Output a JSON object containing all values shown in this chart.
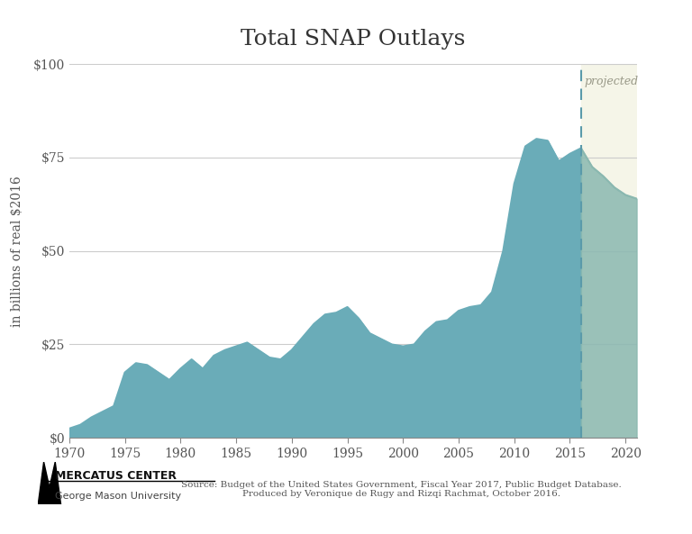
{
  "title": "Total SNAP Outlays",
  "ylabel": "in billions of real $2016",
  "xlabel": "",
  "source_text": "Source: Budget of the United States Government, Fiscal Year 2017, Public Budget Database.\nProduced by Veronique de Rugy and Rizqi Rachmat, October 2016.",
  "projection_label": "projected",
  "projection_start_year": 2016,
  "xlim": [
    1970,
    2021
  ],
  "ylim": [
    0,
    100
  ],
  "yticks": [
    0,
    25,
    50,
    75,
    100
  ],
  "ytick_labels": [
    "$0",
    "$25",
    "$50",
    "$75",
    "$100"
  ],
  "xticks": [
    1970,
    1975,
    1980,
    1985,
    1990,
    1995,
    2000,
    2005,
    2010,
    2015,
    2020
  ],
  "fill_color_historical": "#6aacb8",
  "fill_color_projected": "#8ab8b0",
  "fill_color_projected_bg": "#f5f5e8",
  "dashed_line_color": "#5a9aaa",
  "grid_color": "#cccccc",
  "years": [
    1970,
    1971,
    1972,
    1973,
    1974,
    1975,
    1976,
    1977,
    1978,
    1979,
    1980,
    1981,
    1982,
    1983,
    1984,
    1985,
    1986,
    1987,
    1988,
    1989,
    1990,
    1991,
    1992,
    1993,
    1994,
    1995,
    1996,
    1997,
    1998,
    1999,
    2000,
    2001,
    2002,
    2003,
    2004,
    2005,
    2006,
    2007,
    2008,
    2009,
    2010,
    2011,
    2012,
    2013,
    2014,
    2015,
    2016,
    2017,
    2018,
    2019,
    2020,
    2021
  ],
  "values": [
    2.5,
    3.5,
    5.5,
    7.0,
    8.5,
    17.5,
    20.0,
    19.5,
    17.5,
    15.5,
    18.5,
    21.0,
    18.5,
    22.0,
    23.5,
    24.5,
    25.5,
    23.5,
    21.5,
    21.0,
    23.5,
    27.0,
    30.5,
    33.0,
    33.5,
    35.0,
    32.0,
    28.0,
    26.5,
    25.0,
    24.5,
    25.0,
    28.5,
    31.0,
    31.5,
    34.0,
    35.0,
    35.5,
    39.0,
    50.0,
    68.0,
    78.0,
    80.0,
    79.5,
    74.0,
    76.0,
    77.5,
    72.5,
    70.0,
    67.0,
    65.0,
    64.0
  ],
  "bg_color": "#ffffff",
  "title_fontsize": 18,
  "label_fontsize": 10,
  "tick_fontsize": 10,
  "projection_label_color": "#999988"
}
